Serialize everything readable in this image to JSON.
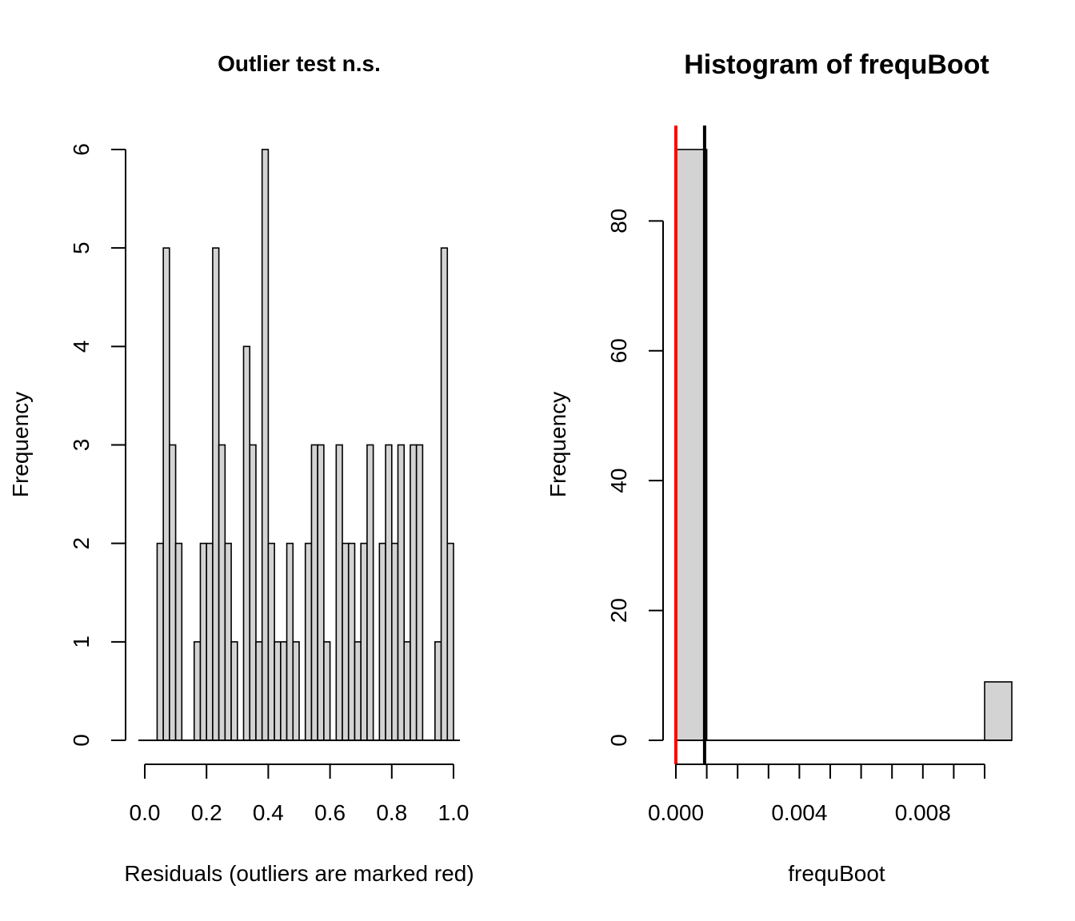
{
  "chart_data": [
    {
      "type": "bar",
      "subtype": "histogram",
      "title": "Outlier test n.s.",
      "xlabel": "Residuals (outliers are marked red)",
      "ylabel": "Frequency",
      "xlim": [
        0,
        1
      ],
      "ylim": [
        0,
        6
      ],
      "x_ticks": [
        "0.0",
        "0.2",
        "0.4",
        "0.6",
        "0.8",
        "1.0"
      ],
      "y_ticks": [
        "0",
        "1",
        "2",
        "3",
        "4",
        "5",
        "6"
      ],
      "bin_width": 0.02,
      "bin_start": 0,
      "values": [
        0,
        0,
        2,
        5,
        3,
        2,
        0,
        0,
        1,
        2,
        2,
        5,
        3,
        2,
        1,
        0,
        4,
        3,
        1,
        6,
        2,
        1,
        1,
        2,
        1,
        0,
        2,
        3,
        3,
        1,
        0,
        3,
        2,
        2,
        1,
        2,
        3,
        0,
        2,
        3,
        2,
        3,
        1,
        3,
        3,
        0,
        0,
        1,
        5,
        2
      ],
      "fill_color": "#d3d3d3",
      "grid": false,
      "legend": "none"
    },
    {
      "type": "bar",
      "subtype": "histogram",
      "title": "Histogram of frequBoot",
      "xlabel": "frequBoot",
      "ylabel": "Frequency",
      "xlim": [
        0,
        0.01
      ],
      "ylim": [
        0,
        90
      ],
      "x_ticks": [
        "0.000",
        "0.004",
        "0.008"
      ],
      "x_tick_values": [
        0,
        0.001,
        0.002,
        0.003,
        0.004,
        0.005,
        0.006,
        0.007,
        0.008,
        0.009,
        0.01
      ],
      "y_ticks": [
        "0",
        "20",
        "40",
        "60",
        "80"
      ],
      "bins": [
        {
          "from": 0.0,
          "to": 0.001,
          "value": 91
        },
        {
          "from": 0.001,
          "to": 0.002,
          "value": 0
        },
        {
          "from": 0.002,
          "to": 0.003,
          "value": 0
        },
        {
          "from": 0.003,
          "to": 0.004,
          "value": 0
        },
        {
          "from": 0.004,
          "to": 0.005,
          "value": 0
        },
        {
          "from": 0.005,
          "to": 0.006,
          "value": 0
        },
        {
          "from": 0.006,
          "to": 0.007,
          "value": 0
        },
        {
          "from": 0.007,
          "to": 0.008,
          "value": 0
        },
        {
          "from": 0.008,
          "to": 0.009,
          "value": 0
        },
        {
          "from": 0.009,
          "to": 0.01,
          "value": 0
        },
        {
          "from": 0.01,
          "to": 0.011,
          "value": 9
        }
      ],
      "vlines": [
        {
          "x": 0.0,
          "color": "#ff0000"
        },
        {
          "x": 0.00093,
          "color": "#000000"
        }
      ],
      "fill_color": "#d3d3d3",
      "grid": false,
      "legend": "none"
    }
  ]
}
